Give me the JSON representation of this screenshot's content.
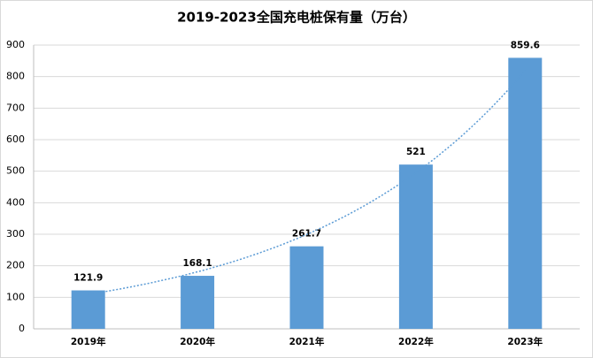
{
  "chart_data": {
    "type": "bar",
    "title": "2019-2023全国充电桩保有量（万台）",
    "categories": [
      "2019年",
      "2020年",
      "2021年",
      "2022年",
      "2023年"
    ],
    "values": [
      121.9,
      168.1,
      261.7,
      521,
      859.6
    ],
    "color": "#5b9bd5",
    "ylim": [
      0,
      900
    ],
    "yticks": [
      0,
      100,
      200,
      300,
      400,
      500,
      600,
      700,
      800,
      900
    ],
    "grid": true,
    "trendline": "exponential",
    "trendline_color": "#5b9bd5"
  }
}
